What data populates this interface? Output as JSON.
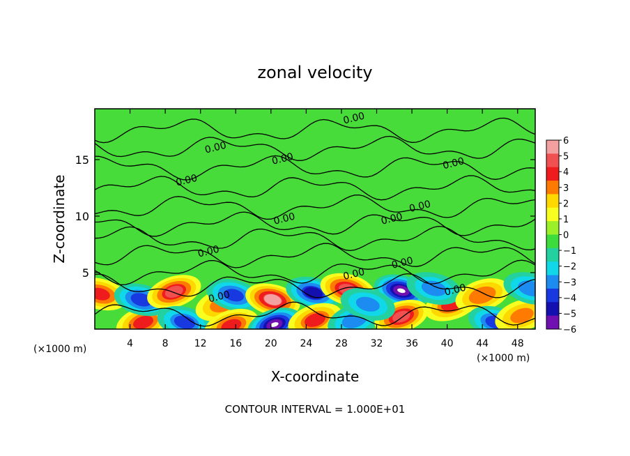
{
  "chart_data": {
    "type": "heatmap",
    "title": "zonal velocity",
    "xlabel": "X-coordinate",
    "ylabel": "Z-coordinate",
    "x_unit_label_left": "(×1000 m)",
    "x_unit_label_right": "(×1000 m)",
    "x_ticks": [
      "4",
      "8",
      "12",
      "16",
      "20",
      "24",
      "28",
      "32",
      "36",
      "40",
      "44",
      "48"
    ],
    "y_ticks": [
      "5",
      "10",
      "15"
    ],
    "xlim": [
      0,
      50
    ],
    "ylim": [
      0,
      19.5
    ],
    "colorbar_ticks": [
      "6",
      "5",
      "4",
      "3",
      "2",
      "1",
      "0",
      "−1",
      "−2",
      "−3",
      "−4",
      "−5",
      "−6"
    ],
    "colorbar_range": [
      -6,
      6
    ],
    "colorbar_colors": [
      "#f4a0a0",
      "#f05050",
      "#ee1c1c",
      "#ff7a00",
      "#ffd800",
      "#f8ff20",
      "#9cf02a",
      "#3cdc3c",
      "#22d0a0",
      "#10d8e8",
      "#1c8cf0",
      "#1838e0",
      "#1410b0",
      "#7010b0"
    ],
    "contour_label": "0.00",
    "contour_interval_text": "CONTOUR INTERVAL = 1.000E+01",
    "blobs": [
      {
        "x": 0.6,
        "z": 3.1,
        "v": 4.0
      },
      {
        "x": 5.5,
        "z": 0.6,
        "v": 3.8
      },
      {
        "x": 5.3,
        "z": 2.6,
        "v": -4.2
      },
      {
        "x": 9.0,
        "z": 3.3,
        "v": 4.6
      },
      {
        "x": 10.2,
        "z": 0.6,
        "v": -3.6
      },
      {
        "x": 14.5,
        "z": 2.2,
        "v": 3.2
      },
      {
        "x": 15.8,
        "z": 3.0,
        "v": -4.0
      },
      {
        "x": 15.5,
        "z": 0.3,
        "v": 3.8
      },
      {
        "x": 20.2,
        "z": 2.6,
        "v": 5.2
      },
      {
        "x": 20.4,
        "z": 0.4,
        "v": -5.8
      },
      {
        "x": 24.8,
        "z": 3.2,
        "v": -4.4
      },
      {
        "x": 25.0,
        "z": 0.8,
        "v": 3.6
      },
      {
        "x": 28.7,
        "z": 3.5,
        "v": 4.8
      },
      {
        "x": 29.5,
        "z": 0.8,
        "v": -3.2
      },
      {
        "x": 34.8,
        "z": 3.4,
        "v": -5.8
      },
      {
        "x": 34.8,
        "z": 1.1,
        "v": 4.8
      },
      {
        "x": 31.0,
        "z": 2.2,
        "v": -3.0
      },
      {
        "x": 40.5,
        "z": 2.2,
        "v": 3.6
      },
      {
        "x": 38.5,
        "z": 3.6,
        "v": -2.8
      },
      {
        "x": 44.0,
        "z": 3.0,
        "v": 3.4
      },
      {
        "x": 45.5,
        "z": 0.6,
        "v": -3.8
      },
      {
        "x": 48.5,
        "z": 1.2,
        "v": 3.0
      },
      {
        "x": 49.5,
        "z": 3.6,
        "v": -3.2
      }
    ],
    "contour_lines_z": [
      1.3,
      3.8,
      5.0,
      6.5,
      8.0,
      9.3,
      10.8,
      12.5,
      14.3,
      16.0,
      17.6
    ],
    "contour_label_positions": [
      {
        "x": 29.5,
        "z": 18.4
      },
      {
        "x": 13.8,
        "z": 15.8
      },
      {
        "x": 21.4,
        "z": 14.8
      },
      {
        "x": 40.8,
        "z": 14.4
      },
      {
        "x": 10.5,
        "z": 12.9
      },
      {
        "x": 37.0,
        "z": 10.6
      },
      {
        "x": 21.6,
        "z": 9.5
      },
      {
        "x": 33.8,
        "z": 9.5
      },
      {
        "x": 13.0,
        "z": 6.6
      },
      {
        "x": 35.0,
        "z": 5.6
      },
      {
        "x": 29.5,
        "z": 4.6
      },
      {
        "x": 14.2,
        "z": 2.6
      },
      {
        "x": 41.0,
        "z": 3.2
      }
    ]
  }
}
